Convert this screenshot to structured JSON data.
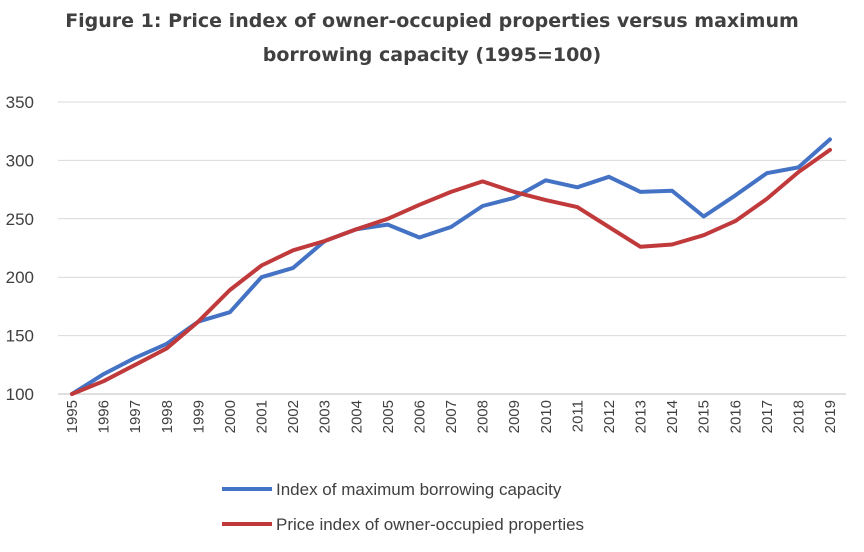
{
  "chart_data": {
    "type": "line",
    "title_line1": "Figure 1: Price index of owner-occupied properties versus maximum",
    "title_line2": "borrowing capacity (1995=100)",
    "xlabel": "",
    "ylabel": "",
    "categories": [
      "1995",
      "1996",
      "1997",
      "1998",
      "1999",
      "2000",
      "2001",
      "2002",
      "2003",
      "2004",
      "2005",
      "2006",
      "2007",
      "2008",
      "2009",
      "2010",
      "2011",
      "2012",
      "2013",
      "2014",
      "2015",
      "2016",
      "2017",
      "2018",
      "2019"
    ],
    "ylim": [
      100,
      350
    ],
    "yticks": [
      100,
      150,
      200,
      250,
      300,
      350
    ],
    "grid": true,
    "legend_position": "bottom",
    "series": [
      {
        "name": "Index of maximum borrowing capacity",
        "color": "#4472C4",
        "values": [
          100,
          117,
          131,
          143,
          162,
          170,
          200,
          208,
          231,
          241,
          245,
          234,
          243,
          261,
          268,
          283,
          277,
          286,
          273,
          274,
          252,
          270,
          289,
          294,
          318
        ]
      },
      {
        "name": "Price index of owner-occupied properties",
        "color": "#C0393B",
        "values": [
          100,
          111,
          125,
          139,
          162,
          189,
          210,
          223,
          231,
          241,
          250,
          262,
          273,
          282,
          273,
          266,
          260,
          243,
          226,
          228,
          236,
          248,
          267,
          290,
          309
        ]
      }
    ]
  }
}
